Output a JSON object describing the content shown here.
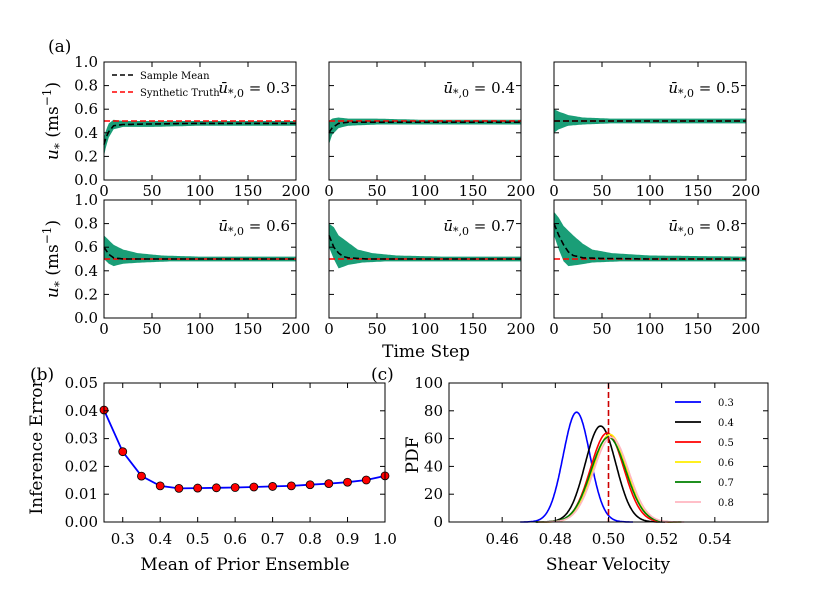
{
  "chart_data": [
    {
      "panel": "(a)",
      "type": "line",
      "title": "",
      "xlabel": "Time Step",
      "ylabel_symbol": "u",
      "ylabel_sub": "*",
      "ylabel_unit_prefix": " (ms",
      "ylabel_unit_exp": "−1",
      "ylabel_unit_suffix": ")",
      "xlim": [
        0,
        200
      ],
      "ylim": [
        0.0,
        1.0
      ],
      "xticks": [
        "0",
        "50",
        "100",
        "150",
        "200"
      ],
      "yticks": [
        "0.0",
        "0.2",
        "0.4",
        "0.6",
        "0.8",
        "1.0"
      ],
      "legend": [
        "Sample Mean",
        "Synthetic Truth"
      ],
      "truth": 0.5,
      "subplots": [
        {
          "label_value": "0.3",
          "initial_mean": 0.3,
          "mean": [
            [
              0,
              0.3
            ],
            [
              2,
              0.36
            ],
            [
              5,
              0.41
            ],
            [
              10,
              0.46
            ],
            [
              20,
              0.47
            ],
            [
              50,
              0.475
            ],
            [
              100,
              0.48
            ],
            [
              150,
              0.48
            ],
            [
              200,
              0.48
            ]
          ],
          "upper": [
            [
              0,
              0.36
            ],
            [
              2,
              0.42
            ],
            [
              5,
              0.48
            ],
            [
              10,
              0.51
            ],
            [
              20,
              0.5
            ],
            [
              50,
              0.5
            ],
            [
              100,
              0.5
            ],
            [
              150,
              0.5
            ],
            [
              200,
              0.5
            ]
          ],
          "lower": [
            [
              0,
              0.2
            ],
            [
              2,
              0.28
            ],
            [
              5,
              0.36
            ],
            [
              10,
              0.43
            ],
            [
              20,
              0.45
            ],
            [
              50,
              0.45
            ],
            [
              100,
              0.46
            ],
            [
              150,
              0.46
            ],
            [
              200,
              0.46
            ]
          ]
        },
        {
          "label_value": "0.4",
          "initial_mean": 0.4,
          "mean": [
            [
              0,
              0.4
            ],
            [
              3,
              0.44
            ],
            [
              10,
              0.48
            ],
            [
              20,
              0.49
            ],
            [
              50,
              0.49
            ],
            [
              100,
              0.49
            ],
            [
              150,
              0.49
            ],
            [
              200,
              0.49
            ]
          ],
          "upper": [
            [
              0,
              0.5
            ],
            [
              3,
              0.52
            ],
            [
              10,
              0.53
            ],
            [
              20,
              0.52
            ],
            [
              50,
              0.52
            ],
            [
              100,
              0.51
            ],
            [
              150,
              0.51
            ],
            [
              200,
              0.51
            ]
          ],
          "lower": [
            [
              0,
              0.3
            ],
            [
              3,
              0.38
            ],
            [
              10,
              0.44
            ],
            [
              20,
              0.46
            ],
            [
              50,
              0.47
            ],
            [
              100,
              0.47
            ],
            [
              150,
              0.47
            ],
            [
              200,
              0.47
            ]
          ]
        },
        {
          "label_value": "0.5",
          "initial_mean": 0.5,
          "mean": [
            [
              0,
              0.5
            ],
            [
              10,
              0.5
            ],
            [
              50,
              0.5
            ],
            [
              100,
              0.5
            ],
            [
              150,
              0.5
            ],
            [
              200,
              0.5
            ]
          ],
          "upper": [
            [
              0,
              0.6
            ],
            [
              5,
              0.58
            ],
            [
              15,
              0.55
            ],
            [
              30,
              0.53
            ],
            [
              60,
              0.52
            ],
            [
              100,
              0.52
            ],
            [
              200,
              0.52
            ]
          ],
          "lower": [
            [
              0,
              0.4
            ],
            [
              5,
              0.43
            ],
            [
              15,
              0.46
            ],
            [
              30,
              0.47
            ],
            [
              60,
              0.48
            ],
            [
              100,
              0.48
            ],
            [
              200,
              0.48
            ]
          ]
        },
        {
          "label_value": "0.6",
          "initial_mean": 0.6,
          "mean": [
            [
              0,
              0.6
            ],
            [
              5,
              0.54
            ],
            [
              10,
              0.51
            ],
            [
              20,
              0.5
            ],
            [
              50,
              0.5
            ],
            [
              100,
              0.5
            ],
            [
              200,
              0.5
            ]
          ],
          "upper": [
            [
              0,
              0.7
            ],
            [
              5,
              0.66
            ],
            [
              10,
              0.62
            ],
            [
              20,
              0.58
            ],
            [
              35,
              0.55
            ],
            [
              60,
              0.53
            ],
            [
              100,
              0.52
            ],
            [
              200,
              0.52
            ]
          ],
          "lower": [
            [
              0,
              0.5
            ],
            [
              5,
              0.46
            ],
            [
              10,
              0.44
            ],
            [
              20,
              0.46
            ],
            [
              40,
              0.47
            ],
            [
              70,
              0.48
            ],
            [
              200,
              0.48
            ]
          ]
        },
        {
          "label_value": "0.7",
          "initial_mean": 0.7,
          "mean": [
            [
              0,
              0.7
            ],
            [
              5,
              0.6
            ],
            [
              10,
              0.55
            ],
            [
              15,
              0.52
            ],
            [
              20,
              0.51
            ],
            [
              40,
              0.5
            ],
            [
              100,
              0.5
            ],
            [
              200,
              0.5
            ]
          ],
          "upper": [
            [
              0,
              0.8
            ],
            [
              5,
              0.77
            ],
            [
              10,
              0.7
            ],
            [
              20,
              0.64
            ],
            [
              30,
              0.58
            ],
            [
              45,
              0.55
            ],
            [
              70,
              0.53
            ],
            [
              120,
              0.52
            ],
            [
              200,
              0.52
            ]
          ],
          "lower": [
            [
              0,
              0.6
            ],
            [
              5,
              0.5
            ],
            [
              10,
              0.42
            ],
            [
              20,
              0.45
            ],
            [
              35,
              0.47
            ],
            [
              60,
              0.48
            ],
            [
              200,
              0.48
            ]
          ]
        },
        {
          "label_value": "0.8",
          "initial_mean": 0.8,
          "mean": [
            [
              0,
              0.8
            ],
            [
              5,
              0.7
            ],
            [
              10,
              0.62
            ],
            [
              15,
              0.56
            ],
            [
              20,
              0.53
            ],
            [
              30,
              0.51
            ],
            [
              50,
              0.505
            ],
            [
              100,
              0.5
            ],
            [
              200,
              0.5
            ]
          ],
          "upper": [
            [
              0,
              0.9
            ],
            [
              5,
              0.85
            ],
            [
              10,
              0.78
            ],
            [
              20,
              0.7
            ],
            [
              30,
              0.63
            ],
            [
              40,
              0.58
            ],
            [
              60,
              0.55
            ],
            [
              100,
              0.53
            ],
            [
              200,
              0.52
            ]
          ],
          "lower": [
            [
              0,
              0.7
            ],
            [
              5,
              0.58
            ],
            [
              10,
              0.48
            ],
            [
              15,
              0.44
            ],
            [
              25,
              0.45
            ],
            [
              40,
              0.47
            ],
            [
              70,
              0.48
            ],
            [
              200,
              0.48
            ]
          ]
        }
      ]
    },
    {
      "panel": "(b)",
      "type": "line",
      "xlabel": "Mean of Prior Ensemble",
      "ylabel": "Inference Error",
      "xlim": [
        0.25,
        1.0
      ],
      "ylim": [
        0.0,
        0.05
      ],
      "xticks": [
        "0.3",
        "0.4",
        "0.5",
        "0.6",
        "0.7",
        "0.8",
        "0.9",
        "1.0"
      ],
      "yticks": [
        "0.00",
        "0.01",
        "0.02",
        "0.03",
        "0.04",
        "0.05"
      ],
      "x": [
        0.25,
        0.3,
        0.35,
        0.4,
        0.45,
        0.5,
        0.55,
        0.6,
        0.65,
        0.7,
        0.75,
        0.8,
        0.85,
        0.9,
        0.95,
        1.0
      ],
      "y": [
        0.0403,
        0.0253,
        0.0165,
        0.013,
        0.0121,
        0.0122,
        0.0123,
        0.0124,
        0.0126,
        0.0128,
        0.013,
        0.0134,
        0.0138,
        0.0143,
        0.0151,
        0.0166
      ],
      "line_color": "#0000ff",
      "marker_color": "#ff0000"
    },
    {
      "panel": "(c)",
      "type": "line",
      "xlabel": "Shear Velocity",
      "ylabel": "PDF",
      "xlim": [
        0.44,
        0.56
      ],
      "ylim": [
        0,
        100
      ],
      "xticks": [
        "0.46",
        "0.48",
        "0.50",
        "0.52",
        "0.54"
      ],
      "yticks": [
        "0",
        "20",
        "40",
        "60",
        "80",
        "100"
      ],
      "truth": 0.5,
      "series": [
        {
          "name": "0.3",
          "color": "#0000ff",
          "mu": 0.488,
          "peak": 79
        },
        {
          "name": "0.4",
          "color": "#000000",
          "mu": 0.497,
          "peak": 69
        },
        {
          "name": "0.5",
          "color": "#ff0000",
          "mu": 0.4995,
          "peak": 64
        },
        {
          "name": "0.6",
          "color": "#ffee00",
          "mu": 0.5005,
          "peak": 63
        },
        {
          "name": "0.7",
          "color": "#008000",
          "mu": 0.5,
          "peak": 61
        },
        {
          "name": "0.8",
          "color": "#ffb6c1",
          "mu": 0.501,
          "peak": 61
        }
      ]
    }
  ]
}
